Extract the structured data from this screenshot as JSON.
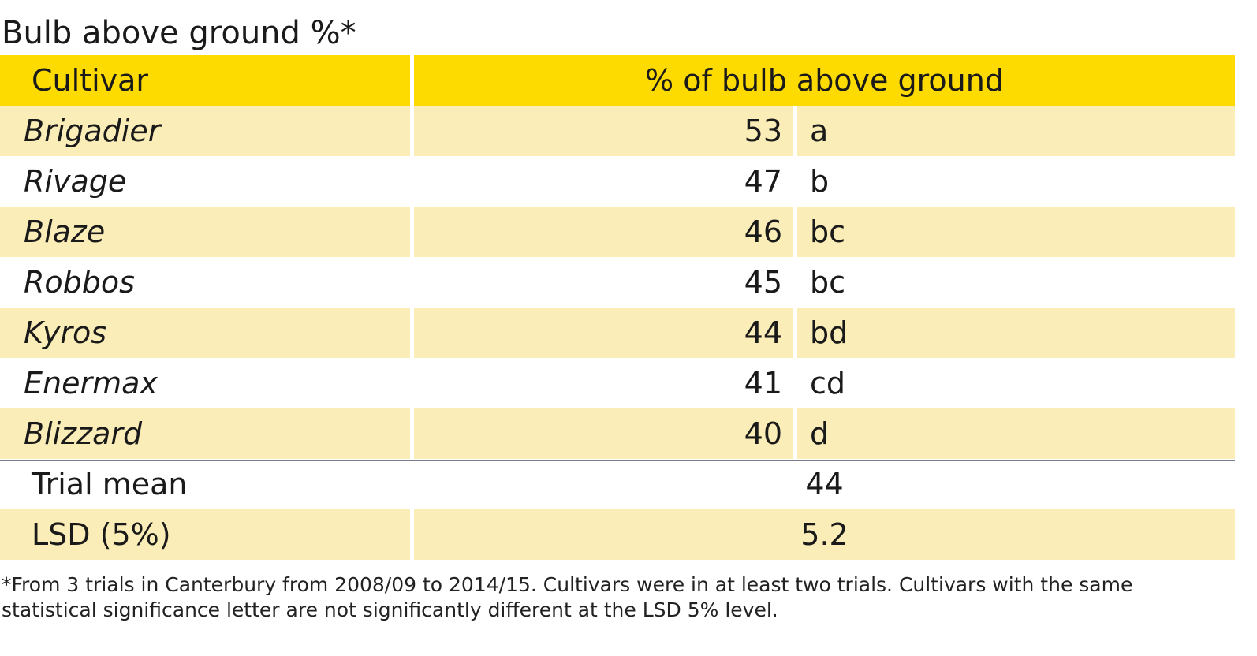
{
  "title": "Bulb above ground %*",
  "header": {
    "cultivar": "Cultivar",
    "percent": "% of bulb above ground"
  },
  "rows": [
    {
      "cultivar": "Brigadier",
      "value": "53",
      "letter": "a"
    },
    {
      "cultivar": "Rivage",
      "value": "47",
      "letter": "b"
    },
    {
      "cultivar": "Blaze",
      "value": "46",
      "letter": "bc"
    },
    {
      "cultivar": "Robbos",
      "value": "45",
      "letter": "bc"
    },
    {
      "cultivar": "Kyros",
      "value": "44",
      "letter": "bd"
    },
    {
      "cultivar": "Enermax",
      "value": "41",
      "letter": "cd"
    },
    {
      "cultivar": "Blizzard",
      "value": "40",
      "letter": "d"
    }
  ],
  "summary": {
    "mean_label": "Trial mean",
    "mean_value": "44",
    "lsd_label": "LSD (5%)",
    "lsd_value": "5.2"
  },
  "footnote": "*From 3 trials in Canterbury from 2008/09 to 2014/15. Cultivars were in at least two trials. Cultivars with the same statistical significance letter are not significantly different at the LSD 5% level.",
  "colors": {
    "header_fill": "#fedb00",
    "band_fill": "#fbedb7"
  },
  "chart_data": {
    "type": "table",
    "title": "Bulb above ground %*",
    "columns": [
      "Cultivar",
      "% of bulb above ground"
    ],
    "categories": [
      "Brigadier",
      "Rivage",
      "Blaze",
      "Robbos",
      "Kyros",
      "Enermax",
      "Blizzard"
    ],
    "values": [
      53,
      47,
      46,
      45,
      44,
      41,
      40
    ],
    "significance_letters": [
      "a",
      "b",
      "bc",
      "bc",
      "bd",
      "cd",
      "d"
    ],
    "trial_mean": 44,
    "lsd_5_percent": 5.2
  }
}
